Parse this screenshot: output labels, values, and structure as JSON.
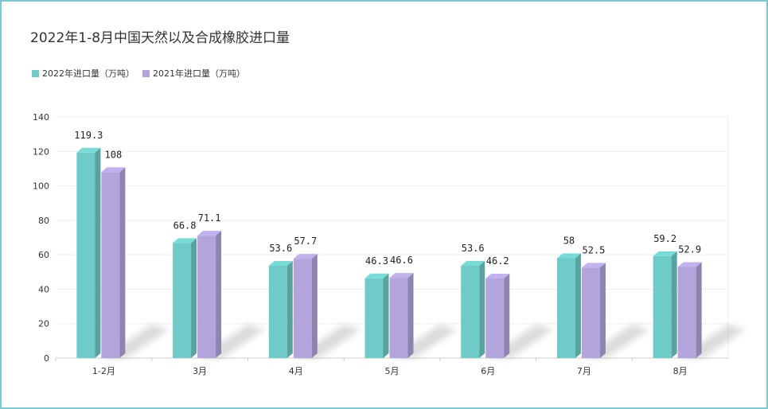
{
  "chart_data": {
    "type": "bar",
    "title": "2022年1-8月中国天然以及合成橡胶进口量",
    "categories": [
      "1-2月",
      "3月",
      "4月",
      "5月",
      "6月",
      "7月",
      "8月"
    ],
    "series": [
      {
        "name": "2022年进口量（万吨）",
        "values": [
          119.3,
          66.8,
          53.6,
          46.3,
          53.6,
          58,
          59.2
        ],
        "labels": [
          "119.3",
          "66.8",
          "53.6",
          "46.3",
          "53.6",
          "58",
          "59.2"
        ],
        "color": "#6ecbc7"
      },
      {
        "name": "2021年进口量（万吨）",
        "values": [
          108,
          71.1,
          57.7,
          46.6,
          46.2,
          52.5,
          52.9
        ],
        "labels": [
          "108",
          "71.1",
          "57.7",
          "46.6",
          "46.2",
          "52.5",
          "52.9"
        ],
        "color": "#b3a4dc"
      }
    ],
    "ylim": [
      0,
      140
    ],
    "yticks": [
      0,
      20,
      40,
      60,
      80,
      100,
      120,
      140
    ],
    "grid": true,
    "legend": "top-left"
  }
}
